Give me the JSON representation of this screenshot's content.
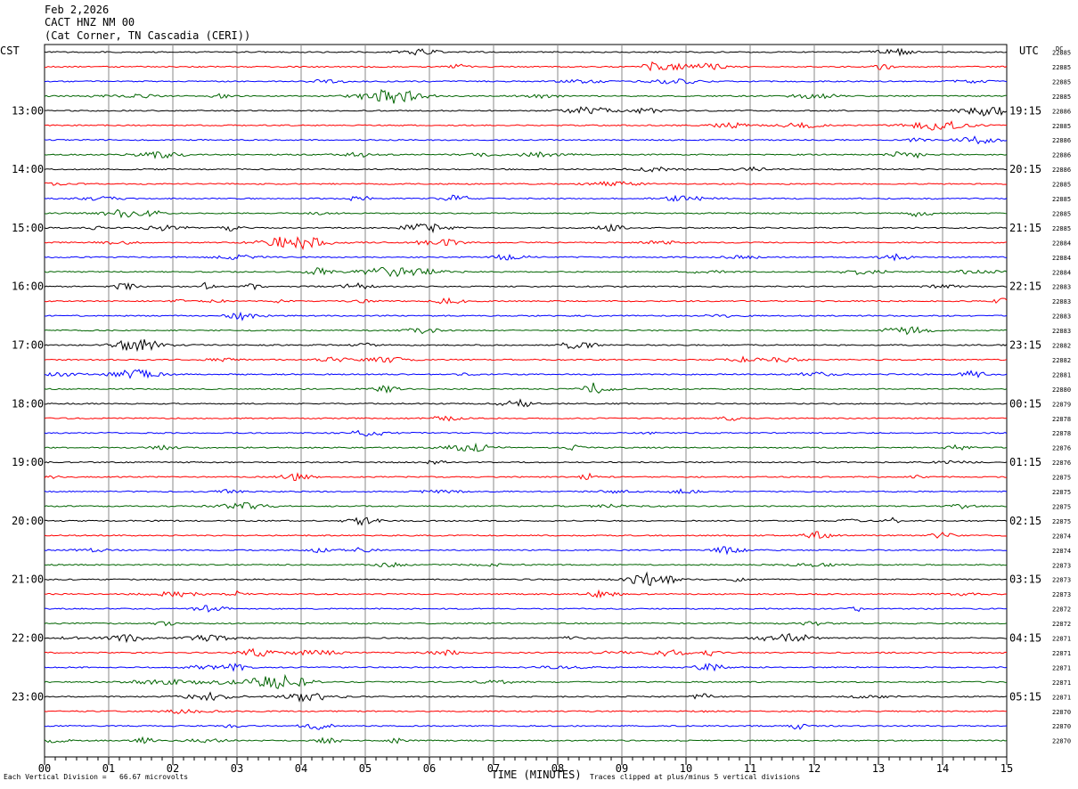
{
  "header": {
    "date": "Feb 2,2026",
    "station": "CACT HNZ NM 00",
    "location": "(Cat Corner, TN Cascadia (CERI))"
  },
  "chart_data": {
    "type": "line",
    "title": "",
    "left_timezone": "CST",
    "right_timezone": "UTC",
    "dc_label": "DC",
    "xlabel": "TIME (MINUTES)",
    "x_ticks": [
      "00",
      "01",
      "02",
      "03",
      "04",
      "05",
      "06",
      "07",
      "08",
      "09",
      "10",
      "11",
      "12",
      "13",
      "14",
      "15"
    ],
    "xlim": [
      0,
      15
    ],
    "trace_count": 48,
    "trace_minutes": 15,
    "trace_colors": [
      "#000000",
      "#ff0000",
      "#0000ff",
      "#006400"
    ],
    "left_hour_labels": [
      "13:00",
      "14:00",
      "15:00",
      "16:00",
      "17:00",
      "18:00",
      "19:00",
      "20:00",
      "21:00",
      "22:00",
      "23:00"
    ],
    "right_hour_labels": [
      "19:15",
      "20:15",
      "21:15",
      "22:15",
      "23:15",
      "00:15",
      "01:15",
      "02:15",
      "03:15",
      "04:15",
      "05:15"
    ],
    "dc_values": [
      22885,
      22885,
      22885,
      22885,
      22886,
      22885,
      22886,
      22886,
      22886,
      22885,
      22885,
      22885,
      22885,
      22884,
      22884,
      22884,
      22883,
      22883,
      22883,
      22883,
      22882,
      22882,
      22881,
      22880,
      22879,
      22878,
      22878,
      22876,
      22876,
      22875,
      22875,
      22875,
      22875,
      22874,
      22874,
      22873,
      22873,
      22873,
      22872,
      22872,
      22871,
      22871,
      22871,
      22871,
      22871,
      22870,
      22870,
      22870
    ],
    "notable_events": [
      {
        "trace": 3,
        "minute": 5.4,
        "amplitude": "large"
      },
      {
        "trace": 13,
        "minute": 3.9,
        "amplitude": "large"
      },
      {
        "trace": 4,
        "minute": 14.7,
        "amplitude": "medium"
      },
      {
        "trace": 5,
        "minute": 13.9,
        "amplitude": "medium"
      },
      {
        "trace": 15,
        "minute": 5.4,
        "amplitude": "medium"
      },
      {
        "trace": 43,
        "minute": 3.6,
        "amplitude": "medium"
      }
    ],
    "grid": true
  },
  "footer": {
    "scale_note": "Each Vertical Division =   66.67 microvolts",
    "clip_note": "Traces clipped at plus/minus 5 vertical divisions"
  }
}
